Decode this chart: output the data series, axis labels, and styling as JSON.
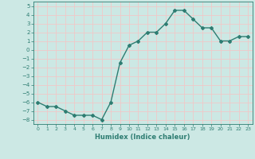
{
  "xlabel": "Humidex (Indice chaleur)",
  "x": [
    0,
    1,
    2,
    3,
    4,
    5,
    6,
    7,
    8,
    9,
    10,
    11,
    12,
    13,
    14,
    15,
    16,
    17,
    18,
    19,
    20,
    21,
    22,
    23
  ],
  "y": [
    -6.0,
    -6.5,
    -6.5,
    -7.0,
    -7.5,
    -7.5,
    -7.5,
    -8.0,
    -6.0,
    -1.5,
    0.5,
    1.0,
    2.0,
    2.0,
    3.0,
    4.5,
    4.5,
    3.5,
    2.5,
    2.5,
    1.0,
    1.0,
    1.5,
    1.5
  ],
  "line_color": "#2e7d72",
  "marker": "D",
  "marker_size": 2.0,
  "background_color": "#cce8e4",
  "grid_color": "#f0c8c8",
  "tick_color": "#2e7d72",
  "label_color": "#2e7d72",
  "ylim": [
    -8.5,
    5.5
  ],
  "yticks": [
    -8,
    -7,
    -6,
    -5,
    -4,
    -3,
    -2,
    -1,
    0,
    1,
    2,
    3,
    4,
    5
  ],
  "xtick_labels": [
    "0",
    "1",
    "2",
    "3",
    "4",
    "5",
    "6",
    "7",
    "8",
    "9",
    "10",
    "11",
    "12",
    "13",
    "14",
    "15",
    "16",
    "17",
    "18",
    "19",
    "20",
    "21",
    "22",
    "23"
  ]
}
